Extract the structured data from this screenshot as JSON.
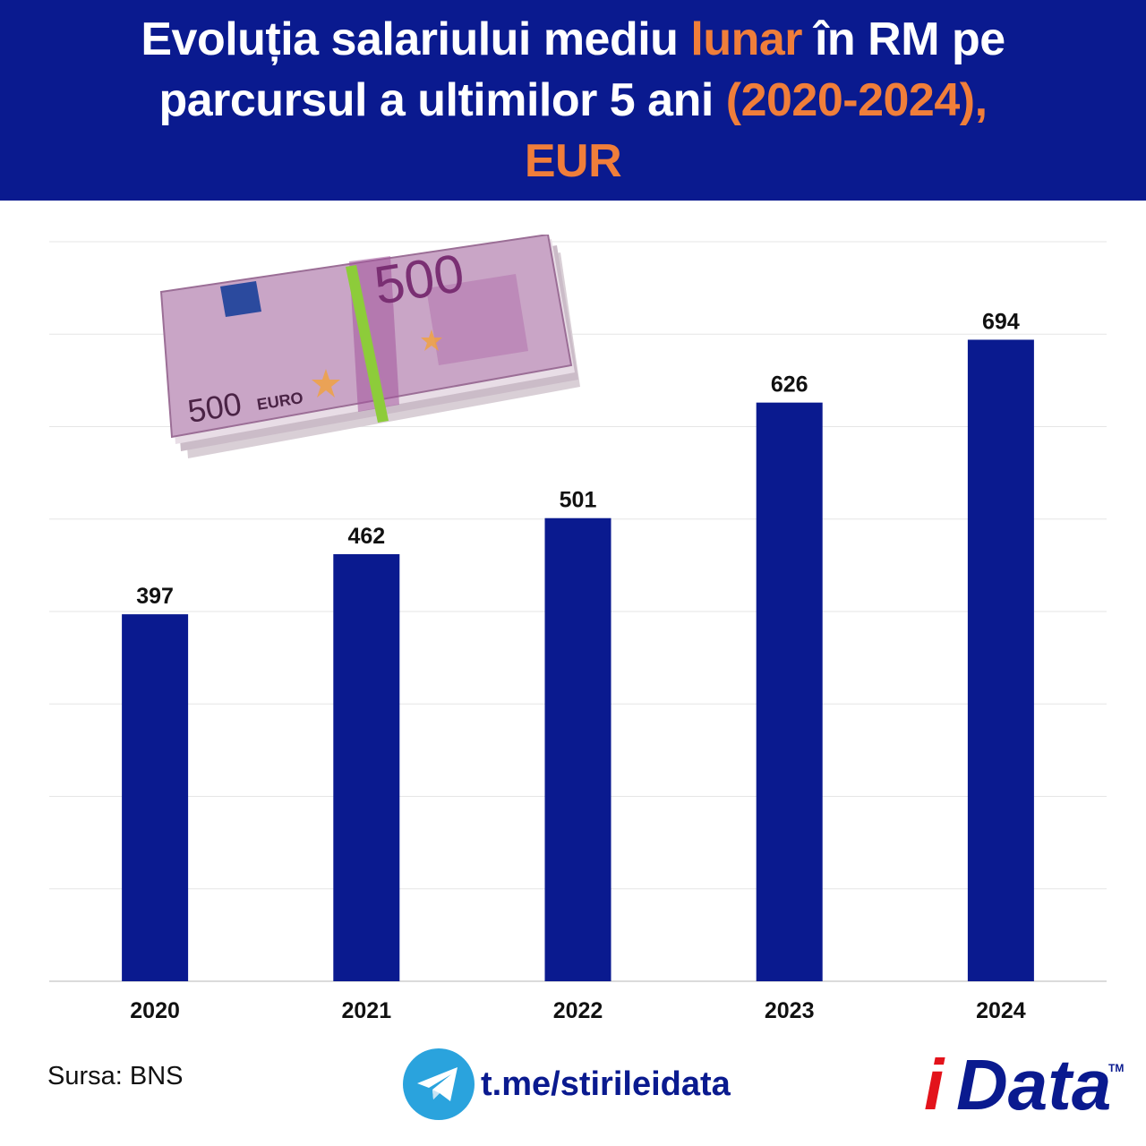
{
  "header": {
    "title_line1_a": "Evoluția salariului mediu ",
    "title_line1_b": "lunar",
    "title_line1_c": " în RM pe",
    "title_line2_a": "parcursul a ultimilor 5 ani ",
    "title_line2_b": "(2020-2024),",
    "title_line3": "EUR"
  },
  "colors": {
    "header_bg": "#0a1a8f",
    "accent": "#f07e3a",
    "bar": "#0a1a8f",
    "logo_red": "#e3131b",
    "telegram": "#2aa3dd"
  },
  "chart_data": {
    "type": "bar",
    "categories": [
      "2020",
      "2021",
      "2022",
      "2023",
      "2024"
    ],
    "values": [
      397,
      462,
      501,
      626,
      694
    ],
    "title": "Evoluția salariului mediu lunar în RM pe parcursul a ultimilor 5 ani (2020-2024), EUR",
    "xlabel": "",
    "ylabel": "",
    "ylim": [
      0,
      800
    ],
    "grid": true,
    "legend": "none",
    "data_labels": true
  },
  "banknote": {
    "denomination": "500",
    "currency": "EURO"
  },
  "footer": {
    "source": "Sursa: BNS",
    "telegram_link": "t.me/stirileidata",
    "logo_i": "i",
    "logo_rest": "Data",
    "logo_tm": "TM"
  }
}
